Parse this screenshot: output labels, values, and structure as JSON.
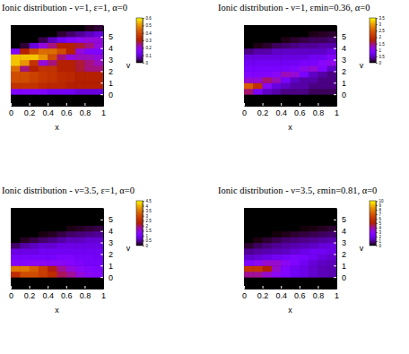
{
  "chart_data": [
    {
      "type": "heatmap",
      "title": "Ionic distribution - ν=1, ε=1, α=0",
      "x_label": "x",
      "y_label": "v",
      "xlim": [
        0,
        1
      ],
      "ylim": [
        -1,
        6
      ],
      "xticks": [
        0,
        0.2,
        0.4,
        0.6,
        0.8,
        1
      ],
      "yticks": [
        0,
        1,
        2,
        3,
        4,
        5
      ],
      "x_bins": [
        0,
        0.1,
        0.2,
        0.3,
        0.4,
        0.5,
        0.6,
        0.7,
        0.8,
        0.9,
        1
      ],
      "y_bins": [
        0,
        0.5,
        1,
        1.5,
        2,
        2.5,
        3,
        3.5,
        4,
        4.5,
        5,
        5.5,
        6
      ],
      "cells": [
        [
          0.15,
          0.15,
          0.15,
          0.15,
          0.12,
          0.12,
          0.12,
          0.1,
          0.1,
          0.1
        ],
        [
          0.35,
          0.35,
          0.35,
          0.33,
          0.32,
          0.32,
          0.3,
          0.3,
          0.3,
          0.3
        ],
        [
          0.4,
          0.4,
          0.38,
          0.36,
          0.35,
          0.33,
          0.32,
          0.3,
          0.3,
          0.3
        ],
        [
          0.4,
          0.4,
          0.38,
          0.36,
          0.35,
          0.33,
          0.32,
          0.3,
          0.3,
          0.3
        ],
        [
          0.45,
          0.25,
          0.3,
          0.35,
          0.35,
          0.3,
          0.3,
          0.28,
          0.25,
          0.25
        ],
        [
          0.55,
          0.5,
          0.35,
          0.2,
          0.25,
          0.3,
          0.3,
          0.28,
          0.25,
          0.22
        ],
        [
          0.55,
          0.55,
          0.55,
          0.5,
          0.4,
          0.25,
          0.2,
          0.22,
          0.22,
          0.2
        ],
        [
          0.15,
          0.3,
          0.4,
          0.45,
          0.45,
          0.4,
          0.3,
          0.2,
          0.15,
          0.15
        ],
        [
          0,
          0.02,
          0.1,
          0.2,
          0.25,
          0.3,
          0.3,
          0.28,
          0.25,
          0.2
        ],
        [
          0,
          0,
          0,
          0.03,
          0.08,
          0.12,
          0.15,
          0.18,
          0.2,
          0.2
        ],
        [
          0,
          0,
          0,
          0,
          0,
          0.02,
          0.04,
          0.06,
          0.08,
          0.1
        ],
        [
          0,
          0,
          0,
          0,
          0,
          0,
          0,
          0,
          0.01,
          0.02
        ]
      ],
      "colorbar_range": [
        0,
        0.6
      ],
      "colorbar_ticks": [
        0,
        0.1,
        0.2,
        0.3,
        0.4,
        0.5,
        0.6
      ]
    },
    {
      "type": "heatmap",
      "title": "Ionic distribution - ν=1, εmin=0.36, α=0",
      "x_label": "x",
      "y_label": "v",
      "xlim": [
        0,
        1
      ],
      "ylim": [
        -1,
        6
      ],
      "xticks": [
        0,
        0.2,
        0.4,
        0.6,
        0.8,
        1
      ],
      "yticks": [
        0,
        1,
        2,
        3,
        4,
        5
      ],
      "x_bins": [
        0,
        0.1,
        0.2,
        0.3,
        0.4,
        0.5,
        0.6,
        0.7,
        0.8,
        0.9,
        1
      ],
      "y_bins": [
        0,
        0.5,
        1,
        1.5,
        2,
        2.5,
        3,
        3.5,
        4,
        4.5,
        5,
        5.5,
        6
      ],
      "cells": [
        [
          1.5,
          0.8,
          0.5,
          0.4,
          0.3,
          0.3,
          0.3,
          0.2,
          0.2,
          0.2
        ],
        [
          2.5,
          2.0,
          1.0,
          0.6,
          0.5,
          0.4,
          0.4,
          0.3,
          0.3,
          0.3
        ],
        [
          1.2,
          1.2,
          1.5,
          1.3,
          0.8,
          0.5,
          0.4,
          0.4,
          0.3,
          0.3
        ],
        [
          0.9,
          0.9,
          0.9,
          1.0,
          1.3,
          1.2,
          0.8,
          0.5,
          0.4,
          0.3
        ],
        [
          0.8,
          0.8,
          0.8,
          0.8,
          0.8,
          0.9,
          1.1,
          1.2,
          0.9,
          0.5
        ],
        [
          0.7,
          0.7,
          0.7,
          0.7,
          0.7,
          0.7,
          0.8,
          0.8,
          1.0,
          1.1
        ],
        [
          0.6,
          0.6,
          0.6,
          0.6,
          0.6,
          0.6,
          0.6,
          0.7,
          0.7,
          0.9
        ],
        [
          0.3,
          0.4,
          0.4,
          0.5,
          0.5,
          0.5,
          0.5,
          0.5,
          0.5,
          0.6
        ],
        [
          0,
          0.05,
          0.1,
          0.2,
          0.25,
          0.3,
          0.35,
          0.35,
          0.4,
          0.4
        ],
        [
          0,
          0,
          0,
          0,
          0.05,
          0.1,
          0.15,
          0.2,
          0.2,
          0.25
        ],
        [
          0,
          0,
          0,
          0,
          0,
          0,
          0,
          0.05,
          0.08,
          0.1
        ],
        [
          0,
          0,
          0,
          0,
          0,
          0,
          0,
          0,
          0,
          0
        ]
      ],
      "colorbar_range": [
        0,
        3.5
      ],
      "colorbar_ticks": [
        0,
        0.5,
        1,
        1.5,
        2,
        2.5,
        3,
        3.5
      ]
    },
    {
      "type": "heatmap",
      "title": "Ionic distribution - ν=3.5, ε=1, α=0",
      "x_label": "x",
      "y_label": "v",
      "xlim": [
        0,
        1
      ],
      "ylim": [
        -1,
        6
      ],
      "xticks": [
        0,
        0.2,
        0.4,
        0.6,
        0.8,
        1
      ],
      "yticks": [
        0,
        1,
        2,
        3,
        4,
        5
      ],
      "x_bins": [
        0,
        0.1,
        0.2,
        0.3,
        0.4,
        0.5,
        0.6,
        0.7,
        0.8,
        0.9,
        1
      ],
      "y_bins": [
        0,
        0.5,
        1,
        1.5,
        2,
        2.5,
        3,
        3.5,
        4,
        4.5,
        5,
        5.5,
        6
      ],
      "cells": [
        [
          2.5,
          3,
          3,
          2.8,
          2.5,
          2,
          1.8,
          1.5,
          1.3,
          1.2
        ],
        [
          3.5,
          3.5,
          3.2,
          2.8,
          2.2,
          1.8,
          1.5,
          1.3,
          1.2,
          1.1
        ],
        [
          1.2,
          1.2,
          1.3,
          1.3,
          1.3,
          1.3,
          1.2,
          1.1,
          1.0,
          1.0
        ],
        [
          1.0,
          1.0,
          1.0,
          1.0,
          1.0,
          1.1,
          1.1,
          1.0,
          1.0,
          0.9
        ],
        [
          0.8,
          0.8,
          0.8,
          0.9,
          0.9,
          0.9,
          0.9,
          0.9,
          0.9,
          0.9
        ],
        [
          0.3,
          0.5,
          0.6,
          0.7,
          0.7,
          0.8,
          0.8,
          0.8,
          0.8,
          0.8
        ],
        [
          0,
          0.1,
          0.2,
          0.3,
          0.4,
          0.5,
          0.6,
          0.6,
          0.7,
          0.7
        ],
        [
          0,
          0,
          0,
          0.05,
          0.1,
          0.2,
          0.3,
          0.35,
          0.4,
          0.45
        ],
        [
          0,
          0,
          0,
          0,
          0,
          0,
          0.05,
          0.1,
          0.15,
          0.2
        ],
        [
          0,
          0,
          0,
          0,
          0,
          0,
          0,
          0,
          0,
          0
        ],
        [
          0,
          0,
          0,
          0,
          0,
          0,
          0,
          0,
          0,
          0
        ],
        [
          0,
          0,
          0,
          0,
          0,
          0,
          0,
          0,
          0,
          0
        ]
      ],
      "colorbar_range": [
        0,
        4.5
      ],
      "colorbar_ticks": [
        0,
        0.5,
        1,
        1.5,
        2,
        2.5,
        3,
        3.5,
        4,
        4.5
      ]
    },
    {
      "type": "heatmap",
      "title": "Ionic distribution - ν=3.5, εmin=0.81, α=0",
      "x_label": "x",
      "y_label": "v",
      "xlim": [
        0,
        1
      ],
      "ylim": [
        -1,
        6
      ],
      "xticks": [
        0,
        0.2,
        0.4,
        0.6,
        0.8,
        1
      ],
      "yticks": [
        0,
        1,
        2,
        3,
        4,
        5
      ],
      "x_bins": [
        0,
        0.1,
        0.2,
        0.3,
        0.4,
        0.5,
        0.6,
        0.7,
        0.8,
        0.9,
        1
      ],
      "y_bins": [
        0,
        0.5,
        1,
        1.5,
        2,
        2.5,
        3,
        3.5,
        4,
        4.5,
        5,
        5.5,
        6
      ],
      "cells": [
        [
          4,
          4,
          3.5,
          3,
          2.5,
          2,
          1.8,
          1.5,
          1.3,
          1.2
        ],
        [
          6,
          6,
          5,
          3.5,
          2.5,
          2,
          1.8,
          1.5,
          1.3,
          1.2
        ],
        [
          2.5,
          3,
          3.5,
          3.5,
          3,
          2.5,
          2,
          1.6,
          1.4,
          1.3
        ],
        [
          1.5,
          1.6,
          1.8,
          2,
          2.2,
          2.4,
          2.3,
          2,
          1.7,
          1.5
        ],
        [
          1.0,
          1.1,
          1.2,
          1.3,
          1.4,
          1.6,
          1.8,
          2,
          2,
          1.8
        ],
        [
          0.3,
          0.6,
          0.8,
          1,
          1.1,
          1.2,
          1.3,
          1.4,
          1.6,
          1.7
        ],
        [
          0,
          0.1,
          0.3,
          0.5,
          0.7,
          0.8,
          0.9,
          1,
          1.1,
          1.2
        ],
        [
          0,
          0,
          0,
          0.05,
          0.15,
          0.3,
          0.4,
          0.5,
          0.6,
          0.7
        ],
        [
          0,
          0,
          0,
          0,
          0,
          0,
          0.05,
          0.1,
          0.2,
          0.3
        ],
        [
          0,
          0,
          0,
          0,
          0,
          0,
          0,
          0,
          0,
          0
        ],
        [
          0,
          0,
          0,
          0,
          0,
          0,
          0,
          0,
          0,
          0
        ],
        [
          0,
          0,
          0,
          0,
          0,
          0,
          0,
          0,
          0,
          0
        ]
      ],
      "colorbar_range": [
        0,
        10
      ],
      "colorbar_ticks": [
        0,
        1,
        2,
        3,
        4,
        5,
        6,
        7,
        8,
        9,
        10
      ]
    }
  ]
}
